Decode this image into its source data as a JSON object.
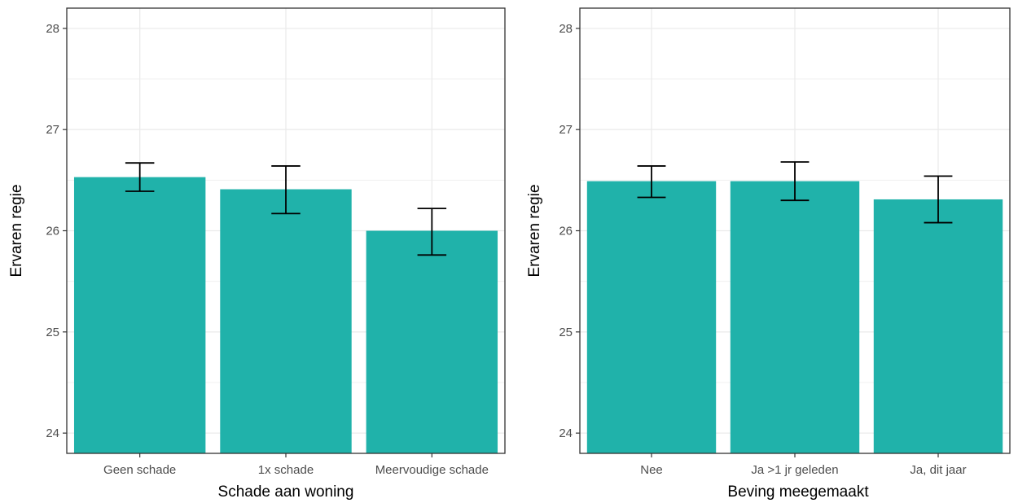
{
  "chart_data": [
    {
      "type": "bar",
      "xlabel": "Schade aan woning",
      "ylabel": "Ervaren regie",
      "categories": [
        "Geen schade",
        "1x schade",
        "Meervoudige schade"
      ],
      "values": [
        26.53,
        26.41,
        26.0
      ],
      "error_low": [
        26.39,
        26.17,
        25.76
      ],
      "error_high": [
        26.67,
        26.64,
        26.22
      ],
      "ylim": [
        23.8,
        28.2
      ],
      "yticks": [
        24,
        25,
        26,
        27,
        28
      ],
      "grid": true,
      "bar_color": "#20b2aa"
    },
    {
      "type": "bar",
      "xlabel": "Beving meegemaakt",
      "ylabel": "Ervaren regie",
      "categories": [
        "Nee",
        "Ja >1 jr geleden",
        "Ja, dit jaar"
      ],
      "values": [
        26.49,
        26.49,
        26.31
      ],
      "error_low": [
        26.33,
        26.3,
        26.08
      ],
      "error_high": [
        26.64,
        26.68,
        26.54
      ],
      "ylim": [
        23.8,
        28.2
      ],
      "yticks": [
        24,
        25,
        26,
        27,
        28
      ],
      "grid": true,
      "bar_color": "#20b2aa"
    }
  ]
}
